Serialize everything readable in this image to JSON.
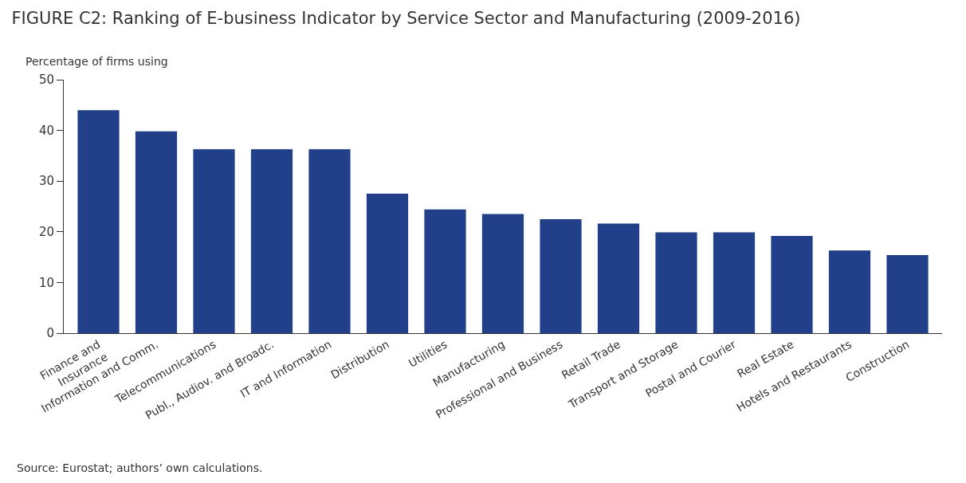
{
  "chart_data": {
    "type": "bar",
    "title": "FIGURE C2: Ranking of E-business Indicator by Service Sector and Manufacturing (2009-2016)",
    "ylabel": "Percentage of firms using",
    "categories": [
      "Finance and\nInsurance",
      "Information and Comm.",
      "Telecommunications",
      "Publ., Audiov. and Broadc.",
      "IT and Information",
      "Distribution",
      "Utilities",
      "Manufacturing",
      "Professional and Business",
      "Retail Trade",
      "Transport and Storage",
      "Postal and Courier",
      "Real Estate",
      "Hotels and Restaurants",
      "Construction"
    ],
    "values": [
      44,
      39.8,
      36.3,
      36.3,
      36.3,
      27.5,
      24.4,
      23.5,
      22.5,
      21.6,
      19.9,
      19.9,
      19.2,
      16.3,
      15.4
    ],
    "color": "#22408a",
    "ylim": [
      0,
      50
    ],
    "yticks": [
      0,
      10,
      20,
      30,
      40,
      50
    ],
    "grid": false,
    "annotations": [
      "Source: Eurostat; authors’ own calculations."
    ]
  }
}
